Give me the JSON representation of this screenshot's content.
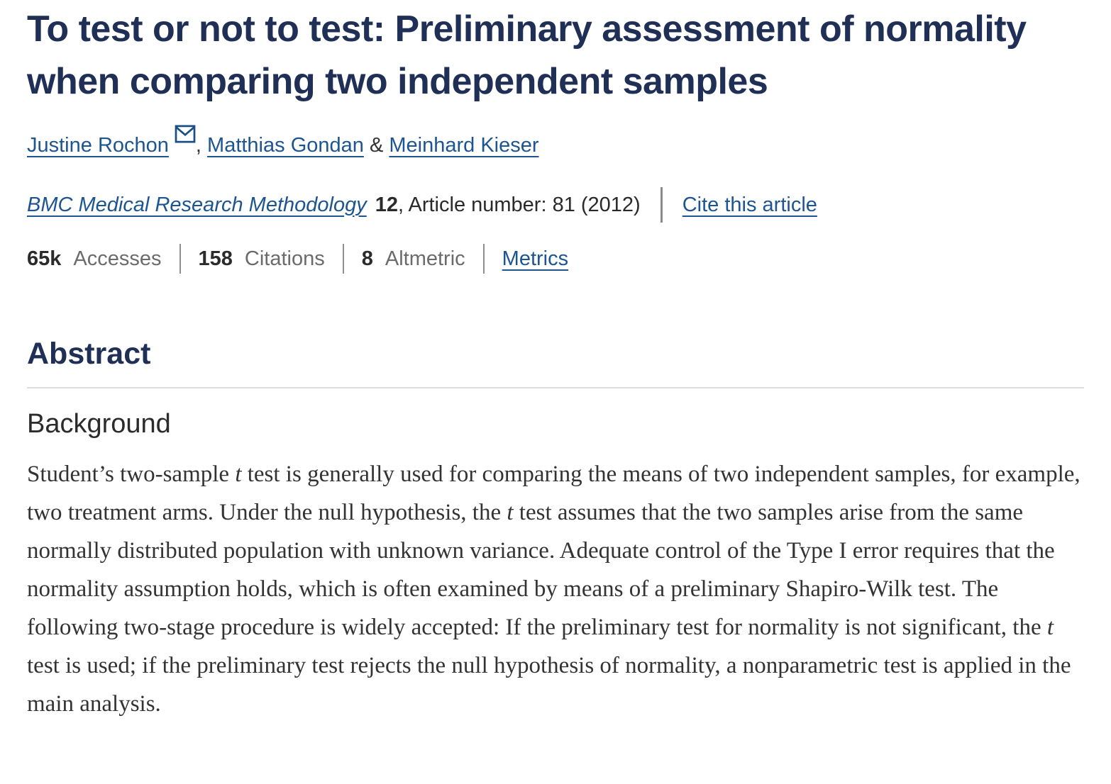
{
  "article": {
    "title": "To test or not to test: Preliminary assessment of normality when comparing two independent samples",
    "authors": [
      {
        "name": "Justine Rochon"
      },
      {
        "name": "Matthias Gondan"
      },
      {
        "name": "Meinhard Kieser"
      }
    ],
    "author_separators": {
      "comma": ", ",
      "ampersand": " & "
    },
    "journal": {
      "name": "BMC Medical Research Methodology",
      "volume": "12",
      "article_info": ", Article number: 81 (2012)",
      "cite_link_label": "Cite this article"
    },
    "metrics": [
      {
        "value": "65k",
        "label": "Accesses"
      },
      {
        "value": "158",
        "label": "Citations"
      },
      {
        "value": "8",
        "label": "Altmetric"
      }
    ],
    "metrics_link_label": "Metrics",
    "icons": {
      "email": "envelope-icon"
    }
  },
  "abstract": {
    "heading": "Abstract",
    "subheading": "Background",
    "paragraph": [
      {
        "text": "Student’s two-sample ",
        "italic": false
      },
      {
        "text": "t",
        "italic": true
      },
      {
        "text": " test is generally used for comparing the means of two independent samples, for example, two treatment arms. Under the null hypothesis, the ",
        "italic": false
      },
      {
        "text": "t",
        "italic": true
      },
      {
        "text": " test assumes that the two samples arise from the same normally distributed population with unknown variance. Adequate control of the Type I error requires that the normality assumption holds, which is often examined by means of a preliminary Shapiro-Wilk test. The following two-stage procedure is widely accepted: If the preliminary test for normality is not significant, the ",
        "italic": false
      },
      {
        "text": "t",
        "italic": true
      },
      {
        "text": " test is used; if the preliminary test rejects the null hypothesis of normality, a nonparametric test is applied in the main analysis.",
        "italic": false
      }
    ]
  },
  "colors": {
    "title_navy": "#1f2f55",
    "link_blue": "#1c5591",
    "label_gray": "#6b6b6b",
    "body_text": "#333333"
  }
}
